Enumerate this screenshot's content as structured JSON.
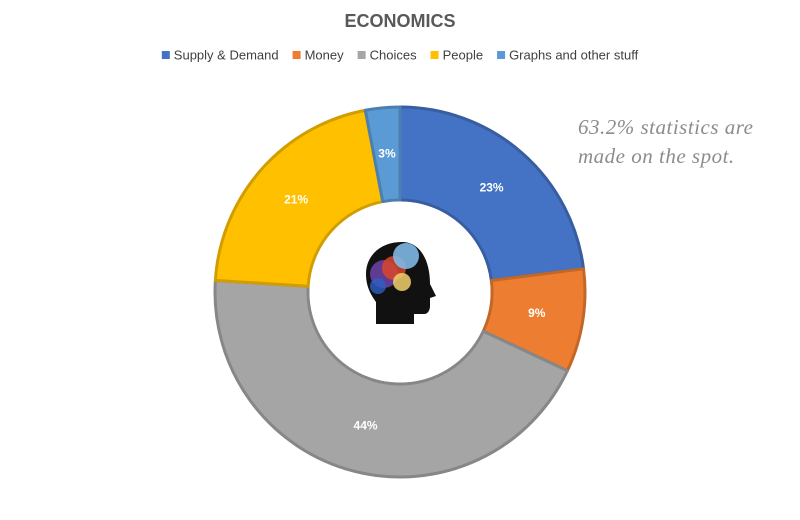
{
  "chart_data": {
    "type": "donut",
    "title": "ECONOMICS",
    "categories": [
      "Supply & Demand",
      "Money",
      "Choices",
      "People",
      "Graphs and other stuff"
    ],
    "values": [
      23,
      9,
      44,
      21,
      3
    ],
    "value_labels": [
      "23%",
      "9%",
      "44%",
      "21%",
      "3%"
    ],
    "colors": [
      "#4472c4",
      "#ed7d31",
      "#a5a5a5",
      "#ffc000",
      "#5b9bd5"
    ],
    "legend": "top",
    "annotation": [
      "63.2% statistics are",
      "made on the spot."
    ]
  }
}
